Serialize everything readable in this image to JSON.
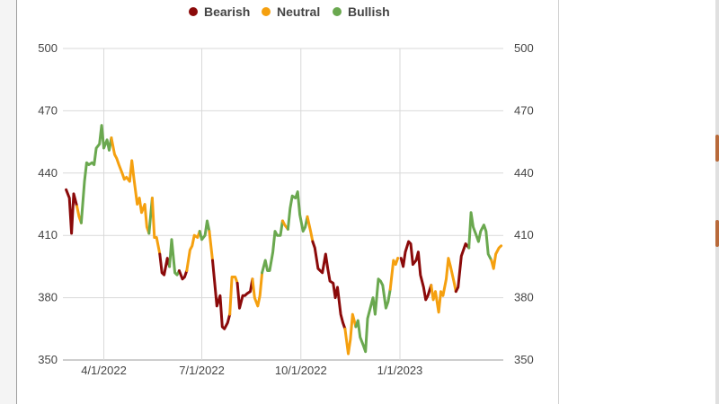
{
  "chart_data": {
    "type": "line",
    "title": "",
    "xlabel": "",
    "ylabel": "",
    "ylim": [
      350,
      500
    ],
    "xlim": [
      "2022-02-22",
      "2023-04-07"
    ],
    "yticks": [
      350,
      380,
      410,
      440,
      470,
      500
    ],
    "xticks": [
      {
        "date": "2022-04-01",
        "label": "4/1/2022"
      },
      {
        "date": "2022-07-01",
        "label": "7/1/2022"
      },
      {
        "date": "2022-10-01",
        "label": "10/1/2022"
      },
      {
        "date": "2023-01-01",
        "label": "1/1/2023"
      }
    ],
    "grid": true,
    "legend_position": "top",
    "dual_y_axis": true,
    "legend": [
      {
        "name": "Bearish",
        "color": "#8b0a0a"
      },
      {
        "name": "Neutral",
        "color": "#f5a00f"
      },
      {
        "name": "Bullish",
        "color": "#6aa84f"
      }
    ],
    "segments": [
      {
        "regime": "Bearish",
        "points": [
          [
            "2022-02-25",
            432
          ],
          [
            "2022-02-28",
            428
          ],
          [
            "2022-03-02",
            411
          ],
          [
            "2022-03-04",
            430
          ],
          [
            "2022-03-07",
            424
          ]
        ]
      },
      {
        "regime": "Neutral",
        "points": [
          [
            "2022-03-07",
            424
          ],
          [
            "2022-03-09",
            419
          ],
          [
            "2022-03-11",
            416
          ]
        ]
      },
      {
        "regime": "Bullish",
        "points": [
          [
            "2022-03-11",
            416
          ],
          [
            "2022-03-14",
            436
          ],
          [
            "2022-03-16",
            445
          ],
          [
            "2022-03-18",
            444
          ],
          [
            "2022-03-21",
            445
          ],
          [
            "2022-03-23",
            444
          ],
          [
            "2022-03-25",
            452
          ],
          [
            "2022-03-28",
            454
          ],
          [
            "2022-03-30",
            463
          ],
          [
            "2022-04-01",
            452
          ],
          [
            "2022-04-04",
            456
          ],
          [
            "2022-04-06",
            451
          ],
          [
            "2022-04-08",
            457
          ]
        ]
      },
      {
        "regime": "Neutral",
        "points": [
          [
            "2022-04-08",
            457
          ],
          [
            "2022-04-11",
            449
          ],
          [
            "2022-04-13",
            447
          ],
          [
            "2022-04-15",
            444
          ],
          [
            "2022-04-18",
            440
          ],
          [
            "2022-04-20",
            437
          ],
          [
            "2022-04-22",
            438
          ],
          [
            "2022-04-25",
            436
          ],
          [
            "2022-04-27",
            446
          ],
          [
            "2022-04-29",
            437
          ],
          [
            "2022-05-02",
            425
          ],
          [
            "2022-05-04",
            428
          ],
          [
            "2022-05-06",
            421
          ],
          [
            "2022-05-09",
            425
          ],
          [
            "2022-05-11",
            414
          ],
          [
            "2022-05-13",
            411
          ]
        ]
      },
      {
        "regime": "Bullish",
        "points": [
          [
            "2022-05-13",
            411
          ],
          [
            "2022-05-16",
            428
          ]
        ]
      },
      {
        "regime": "Neutral",
        "points": [
          [
            "2022-05-16",
            428
          ],
          [
            "2022-05-18",
            409
          ],
          [
            "2022-05-20",
            409
          ],
          [
            "2022-05-23",
            401
          ]
        ]
      },
      {
        "regime": "Bearish",
        "points": [
          [
            "2022-05-23",
            401
          ],
          [
            "2022-05-25",
            392
          ],
          [
            "2022-05-27",
            391
          ],
          [
            "2022-05-30",
            399
          ],
          [
            "2022-06-01",
            395
          ]
        ]
      },
      {
        "regime": "Bullish",
        "points": [
          [
            "2022-06-01",
            395
          ],
          [
            "2022-06-03",
            408
          ],
          [
            "2022-06-06",
            392
          ],
          [
            "2022-06-08",
            391
          ],
          [
            "2022-06-10",
            393
          ]
        ]
      },
      {
        "regime": "Bearish",
        "points": [
          [
            "2022-06-10",
            393
          ],
          [
            "2022-06-13",
            389
          ],
          [
            "2022-06-15",
            390
          ],
          [
            "2022-06-17",
            393
          ]
        ]
      },
      {
        "regime": "Neutral",
        "points": [
          [
            "2022-06-17",
            393
          ],
          [
            "2022-06-20",
            403
          ],
          [
            "2022-06-22",
            405
          ],
          [
            "2022-06-24",
            410
          ],
          [
            "2022-06-27",
            409
          ],
          [
            "2022-06-29",
            412
          ]
        ]
      },
      {
        "regime": "Bullish",
        "points": [
          [
            "2022-06-29",
            412
          ],
          [
            "2022-07-01",
            408
          ],
          [
            "2022-07-04",
            410
          ],
          [
            "2022-07-06",
            417
          ],
          [
            "2022-07-08",
            412
          ]
        ]
      },
      {
        "regime": "Neutral",
        "points": [
          [
            "2022-07-08",
            412
          ],
          [
            "2022-07-11",
            398
          ]
        ]
      },
      {
        "regime": "Bearish",
        "points": [
          [
            "2022-07-11",
            398
          ],
          [
            "2022-07-13",
            387
          ],
          [
            "2022-07-15",
            376
          ],
          [
            "2022-07-18",
            381
          ],
          [
            "2022-07-20",
            366
          ],
          [
            "2022-07-22",
            365
          ],
          [
            "2022-07-25",
            368
          ],
          [
            "2022-07-27",
            372
          ]
        ]
      },
      {
        "regime": "Neutral",
        "points": [
          [
            "2022-07-27",
            372
          ],
          [
            "2022-07-29",
            390
          ],
          [
            "2022-08-01",
            390
          ],
          [
            "2022-08-03",
            387
          ]
        ]
      },
      {
        "regime": "Bearish",
        "points": [
          [
            "2022-08-03",
            387
          ],
          [
            "2022-08-05",
            375
          ],
          [
            "2022-08-08",
            381
          ],
          [
            "2022-08-10",
            381
          ],
          [
            "2022-08-12",
            382
          ],
          [
            "2022-08-15",
            383
          ],
          [
            "2022-08-17",
            389
          ]
        ]
      },
      {
        "regime": "Neutral",
        "points": [
          [
            "2022-08-17",
            389
          ],
          [
            "2022-08-19",
            380
          ],
          [
            "2022-08-22",
            376
          ],
          [
            "2022-08-24",
            381
          ],
          [
            "2022-08-26",
            392
          ]
        ]
      },
      {
        "regime": "Bullish",
        "points": [
          [
            "2022-08-26",
            392
          ],
          [
            "2022-08-29",
            398
          ],
          [
            "2022-08-31",
            393
          ],
          [
            "2022-09-02",
            393
          ],
          [
            "2022-09-05",
            402
          ],
          [
            "2022-09-07",
            412
          ],
          [
            "2022-09-09",
            410
          ],
          [
            "2022-09-12",
            410
          ],
          [
            "2022-09-14",
            417
          ]
        ]
      },
      {
        "regime": "Neutral",
        "points": [
          [
            "2022-09-14",
            417
          ],
          [
            "2022-09-16",
            415
          ],
          [
            "2022-09-19",
            413
          ]
        ]
      },
      {
        "regime": "Bullish",
        "points": [
          [
            "2022-09-19",
            413
          ],
          [
            "2022-09-21",
            423
          ],
          [
            "2022-09-23",
            429
          ],
          [
            "2022-09-26",
            428
          ],
          [
            "2022-09-28",
            431
          ],
          [
            "2022-09-30",
            420
          ],
          [
            "2022-10-03",
            412
          ],
          [
            "2022-10-05",
            414
          ],
          [
            "2022-10-07",
            419
          ]
        ]
      },
      {
        "regime": "Neutral",
        "points": [
          [
            "2022-10-07",
            419
          ],
          [
            "2022-10-10",
            412
          ],
          [
            "2022-10-12",
            407
          ]
        ]
      },
      {
        "regime": "Bearish",
        "points": [
          [
            "2022-10-12",
            407
          ],
          [
            "2022-10-14",
            404
          ],
          [
            "2022-10-17",
            394
          ],
          [
            "2022-10-19",
            393
          ],
          [
            "2022-10-21",
            392
          ],
          [
            "2022-10-24",
            401
          ],
          [
            "2022-10-26",
            394
          ],
          [
            "2022-10-28",
            388
          ],
          [
            "2022-10-31",
            387
          ],
          [
            "2022-11-02",
            380
          ],
          [
            "2022-11-04",
            385
          ],
          [
            "2022-11-07",
            372
          ],
          [
            "2022-11-09",
            368
          ],
          [
            "2022-11-11",
            365
          ]
        ]
      },
      {
        "regime": "Neutral",
        "points": [
          [
            "2022-11-11",
            365
          ],
          [
            "2022-11-14",
            353
          ],
          [
            "2022-11-16",
            360
          ],
          [
            "2022-11-18",
            372
          ],
          [
            "2022-11-21",
            366
          ]
        ]
      },
      {
        "regime": "Bullish",
        "points": [
          [
            "2022-11-21",
            366
          ],
          [
            "2022-11-23",
            369
          ],
          [
            "2022-11-25",
            361
          ],
          [
            "2022-11-28",
            357
          ],
          [
            "2022-11-30",
            354
          ],
          [
            "2022-12-02",
            370
          ],
          [
            "2022-12-05",
            376
          ],
          [
            "2022-12-07",
            380
          ],
          [
            "2022-12-09",
            372
          ],
          [
            "2022-12-12",
            389
          ],
          [
            "2022-12-14",
            388
          ],
          [
            "2022-12-16",
            386
          ],
          [
            "2022-12-19",
            375
          ],
          [
            "2022-12-21",
            378
          ],
          [
            "2022-12-23",
            384
          ]
        ]
      },
      {
        "regime": "Neutral",
        "points": [
          [
            "2022-12-23",
            384
          ],
          [
            "2022-12-26",
            398
          ],
          [
            "2022-12-28",
            396
          ],
          [
            "2022-12-30",
            399
          ]
        ]
      },
      {
        "regime": "Bearish",
        "points": [
          [
            "2023-01-02",
            399
          ],
          [
            "2023-01-04",
            395
          ],
          [
            "2023-01-06",
            402
          ],
          [
            "2023-01-09",
            407
          ],
          [
            "2023-01-11",
            406
          ],
          [
            "2023-01-13",
            396
          ],
          [
            "2023-01-16",
            398
          ],
          [
            "2023-01-18",
            402
          ],
          [
            "2023-01-20",
            391
          ],
          [
            "2023-01-23",
            385
          ],
          [
            "2023-01-25",
            379
          ],
          [
            "2023-01-27",
            381
          ],
          [
            "2023-01-30",
            386
          ]
        ]
      },
      {
        "regime": "Neutral",
        "points": [
          [
            "2023-01-30",
            386
          ],
          [
            "2023-02-01",
            379
          ],
          [
            "2023-02-03",
            383
          ],
          [
            "2023-02-06",
            373
          ],
          [
            "2023-02-08",
            383
          ],
          [
            "2023-02-10",
            381
          ],
          [
            "2023-02-13",
            389
          ],
          [
            "2023-02-15",
            399
          ],
          [
            "2023-02-17",
            395
          ],
          [
            "2023-02-20",
            388
          ],
          [
            "2023-02-22",
            383
          ]
        ]
      },
      {
        "regime": "Bearish",
        "points": [
          [
            "2023-02-22",
            383
          ],
          [
            "2023-02-24",
            385
          ],
          [
            "2023-02-27",
            400
          ],
          [
            "2023-03-01",
            403
          ],
          [
            "2023-03-03",
            406
          ],
          [
            "2023-03-06",
            404
          ]
        ]
      },
      {
        "regime": "Bullish",
        "points": [
          [
            "2023-03-06",
            404
          ],
          [
            "2023-03-08",
            421
          ],
          [
            "2023-03-10",
            414
          ],
          [
            "2023-03-13",
            410
          ],
          [
            "2023-03-15",
            407
          ],
          [
            "2023-03-17",
            412
          ],
          [
            "2023-03-20",
            415
          ],
          [
            "2023-03-22",
            412
          ],
          [
            "2023-03-24",
            401
          ],
          [
            "2023-03-27",
            398
          ]
        ]
      },
      {
        "regime": "Neutral",
        "points": [
          [
            "2023-03-27",
            398
          ],
          [
            "2023-03-29",
            394
          ],
          [
            "2023-03-31",
            401
          ],
          [
            "2023-04-03",
            404
          ],
          [
            "2023-04-05",
            405
          ]
        ]
      }
    ]
  }
}
